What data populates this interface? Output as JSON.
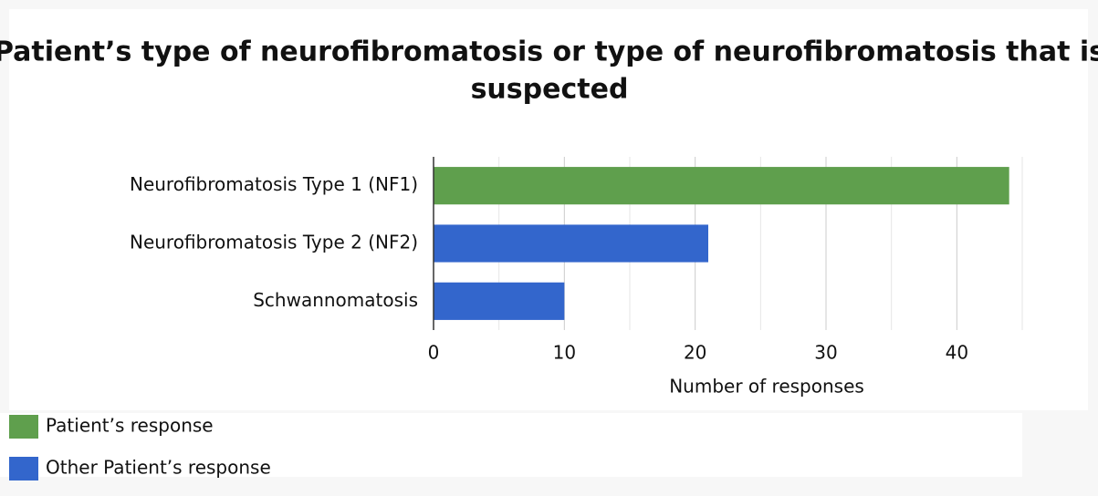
{
  "chart_data": {
    "type": "hbar",
    "title_lines": [
      "Patient’s type of neurofibromatosis or type of neurofibromatosis that is",
      "suspected"
    ],
    "categories": [
      "Neurofibromatosis Type 1 (NF1)",
      "Neurofibromatosis Type 2 (NF2)",
      "Schwannomatosis"
    ],
    "series": [
      {
        "name": "Patient’s response",
        "color": "#5f9f4d",
        "values": [
          44,
          null,
          null
        ]
      },
      {
        "name": "Other Patient’s response",
        "color": "#3366cc",
        "values": [
          null,
          21,
          10
        ]
      }
    ],
    "xlabel": "Number of responses",
    "xlim": [
      0,
      45
    ],
    "xticks": [
      0,
      10,
      20,
      30,
      40
    ],
    "minor_xticks": [
      5,
      15,
      25,
      35,
      45
    ],
    "grid": true
  }
}
